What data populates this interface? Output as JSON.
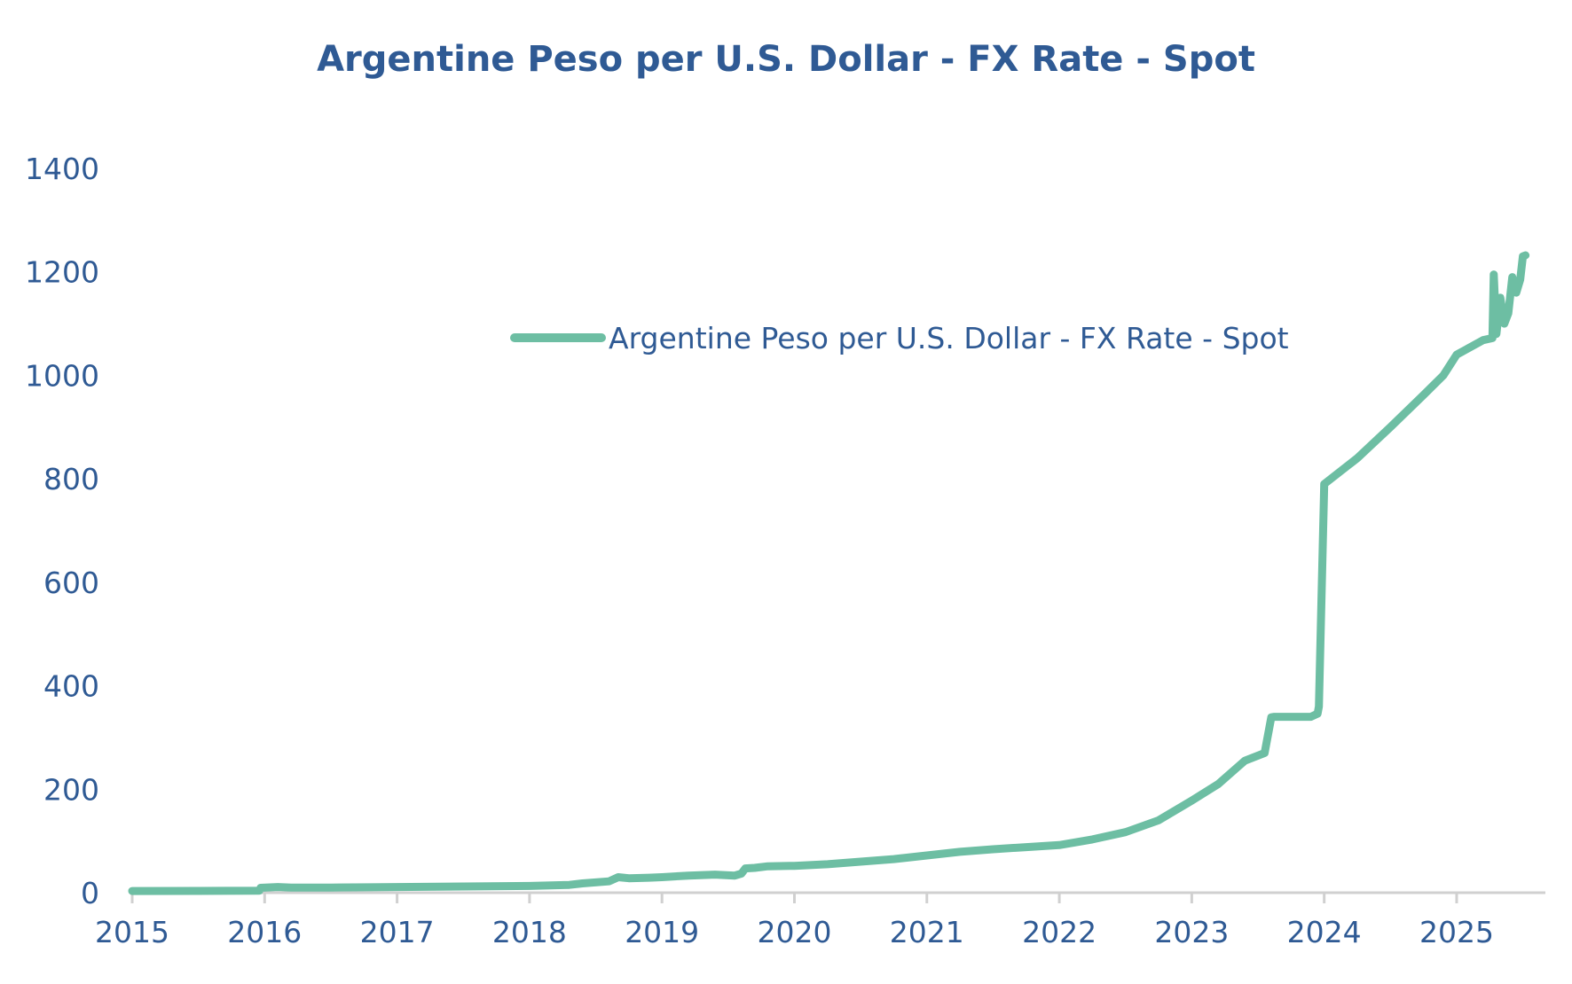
{
  "chart_data": {
    "type": "line",
    "title": "Argentine Peso per U.S. Dollar - FX Rate - Spot",
    "xlabel": "",
    "ylabel": "",
    "x_ticks": [
      "2015",
      "2016",
      "2017",
      "2018",
      "2019",
      "2020",
      "2021",
      "2022",
      "2023",
      "2024",
      "2025"
    ],
    "y_ticks": [
      0,
      200,
      400,
      600,
      800,
      1000,
      1200,
      1400
    ],
    "xlim": [
      2015.0,
      2025.67
    ],
    "ylim": [
      0,
      1400
    ],
    "grid": false,
    "legend_position": "upper-center",
    "series": [
      {
        "name": "Argentine Peso per U.S. Dollar - FX Rate - Spot",
        "color": "#6dbea3",
        "x": [
          2015.0,
          2015.5,
          2015.96,
          2015.97,
          2016.1,
          2016.2,
          2016.5,
          2016.8,
          2017.0,
          2017.5,
          2018.0,
          2018.3,
          2018.4,
          2018.6,
          2018.67,
          2018.75,
          2018.9,
          2019.0,
          2019.2,
          2019.4,
          2019.55,
          2019.6,
          2019.63,
          2019.7,
          2019.8,
          2020.0,
          2020.25,
          2020.5,
          2020.75,
          2021.0,
          2021.25,
          2021.5,
          2021.75,
          2022.0,
          2022.25,
          2022.5,
          2022.75,
          2023.0,
          2023.2,
          2023.4,
          2023.55,
          2023.6,
          2023.62,
          2023.7,
          2023.9,
          2023.95,
          2023.96,
          2024.0,
          2024.25,
          2024.5,
          2024.75,
          2024.9,
          2025.0,
          2025.2,
          2025.27,
          2025.28,
          2025.3,
          2025.33,
          2025.36,
          2025.39,
          2025.42,
          2025.45,
          2025.48,
          2025.5,
          2025.52
        ],
        "y": [
          3.3,
          3.5,
          3.9,
          9.5,
          11,
          10,
          10,
          10.5,
          11,
          12,
          13,
          15,
          18,
          22,
          30,
          28,
          29,
          30,
          33,
          35,
          33,
          37,
          47,
          48,
          51,
          52,
          55,
          60,
          65,
          72,
          79,
          84,
          88,
          92,
          103,
          117,
          140,
          178,
          210,
          255,
          270,
          339,
          340,
          340,
          340,
          346,
          360,
          790,
          840,
          900,
          962,
          1000,
          1040,
          1068,
          1072,
          1195,
          1080,
          1150,
          1100,
          1120,
          1190,
          1160,
          1185,
          1230,
          1232
        ]
      }
    ]
  }
}
